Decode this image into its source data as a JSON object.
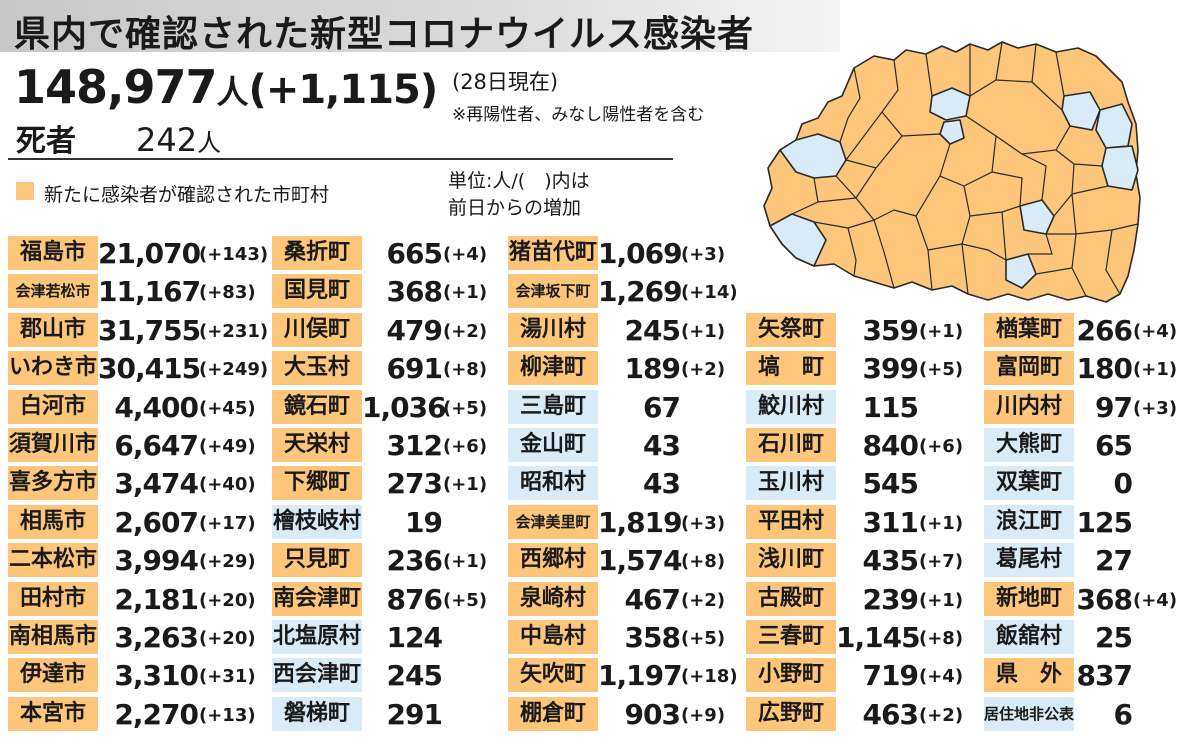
{
  "header": {
    "title": "県内で確認された新型コロナウイルス感染者",
    "total": "148,977",
    "total_unit": "人",
    "total_diff": "(+1,115)",
    "as_of": "(28日現在)",
    "note": "※再陽性者、みなし陽性者を含む",
    "deaths_label": "死者",
    "deaths_value": "242",
    "deaths_unit": "人"
  },
  "legend": {
    "label": "新たに感染者が確認された市町村",
    "color": "#fdc67a"
  },
  "unit_note": {
    "line1": "単位:人/(　)内は",
    "line2": "前日からの増加"
  },
  "colors": {
    "new_case": "#fdc67a",
    "no_new_case": "#d9ebf6"
  },
  "columns": [
    [
      {
        "name": "福島市",
        "value": "21,070",
        "diff": "(+143)",
        "new": true
      },
      {
        "name": "会津若松市",
        "value": "11,167",
        "diff": "(+83)",
        "new": true
      },
      {
        "name": "郡山市",
        "value": "31,755",
        "diff": "(+231)",
        "new": true
      },
      {
        "name": "いわき市",
        "value": "30,415",
        "diff": "(+249)",
        "new": true
      },
      {
        "name": "白河市",
        "value": "4,400",
        "diff": "(+45)",
        "new": true
      },
      {
        "name": "須賀川市",
        "value": "6,647",
        "diff": "(+49)",
        "new": true
      },
      {
        "name": "喜多方市",
        "value": "3,474",
        "diff": "(+40)",
        "new": true
      },
      {
        "name": "相馬市",
        "value": "2,607",
        "diff": "(+17)",
        "new": true
      },
      {
        "name": "二本松市",
        "value": "3,994",
        "diff": "(+29)",
        "new": true
      },
      {
        "name": "田村市",
        "value": "2,181",
        "diff": "(+20)",
        "new": true
      },
      {
        "name": "南相馬市",
        "value": "3,263",
        "diff": "(+20)",
        "new": true
      },
      {
        "name": "伊達市",
        "value": "3,310",
        "diff": "(+31)",
        "new": true
      },
      {
        "name": "本宮市",
        "value": "2,270",
        "diff": "(+13)",
        "new": true
      }
    ],
    [
      {
        "name": "桑折町",
        "value": "665",
        "diff": "(+4)",
        "new": true
      },
      {
        "name": "国見町",
        "value": "368",
        "diff": "(+1)",
        "new": true
      },
      {
        "name": "川俣町",
        "value": "479",
        "diff": "(+2)",
        "new": true
      },
      {
        "name": "大玉村",
        "value": "691",
        "diff": "(+8)",
        "new": true
      },
      {
        "name": "鏡石町",
        "value": "1,036",
        "diff": "(+5)",
        "new": true
      },
      {
        "name": "天栄村",
        "value": "312",
        "diff": "(+6)",
        "new": true
      },
      {
        "name": "下郷町",
        "value": "273",
        "diff": "(+1)",
        "new": true
      },
      {
        "name": "檜枝岐村",
        "value": "19",
        "diff": "",
        "new": false
      },
      {
        "name": "只見町",
        "value": "236",
        "diff": "(+1)",
        "new": true
      },
      {
        "name": "南会津町",
        "value": "876",
        "diff": "(+5)",
        "new": true
      },
      {
        "name": "北塩原村",
        "value": "124",
        "diff": "",
        "new": false
      },
      {
        "name": "西会津町",
        "value": "245",
        "diff": "",
        "new": false
      },
      {
        "name": "磐梯町",
        "value": "291",
        "diff": "",
        "new": false
      }
    ],
    [
      {
        "name": "猪苗代町",
        "value": "1,069",
        "diff": "(+3)",
        "new": true
      },
      {
        "name": "会津坂下町",
        "value": "1,269",
        "diff": "(+14)",
        "new": true
      },
      {
        "name": "湯川村",
        "value": "245",
        "diff": "(+1)",
        "new": true
      },
      {
        "name": "柳津町",
        "value": "189",
        "diff": "(+2)",
        "new": true
      },
      {
        "name": "三島町",
        "value": "67",
        "diff": "",
        "new": false
      },
      {
        "name": "金山町",
        "value": "43",
        "diff": "",
        "new": false
      },
      {
        "name": "昭和村",
        "value": "43",
        "diff": "",
        "new": false
      },
      {
        "name": "会津美里町",
        "value": "1,819",
        "diff": "(+3)",
        "new": true
      },
      {
        "name": "西郷村",
        "value": "1,574",
        "diff": "(+8)",
        "new": true
      },
      {
        "name": "泉崎村",
        "value": "467",
        "diff": "(+2)",
        "new": true
      },
      {
        "name": "中島村",
        "value": "358",
        "diff": "(+5)",
        "new": true
      },
      {
        "name": "矢吹町",
        "value": "1,197",
        "diff": "(+18)",
        "new": true
      },
      {
        "name": "棚倉町",
        "value": "903",
        "diff": "(+9)",
        "new": true
      }
    ],
    [
      {
        "name": "矢祭町",
        "value": "359",
        "diff": "(+1)",
        "new": true
      },
      {
        "name": "塙　町",
        "value": "399",
        "diff": "(+5)",
        "new": true
      },
      {
        "name": "鮫川村",
        "value": "115",
        "diff": "",
        "new": false
      },
      {
        "name": "石川町",
        "value": "840",
        "diff": "(+6)",
        "new": true
      },
      {
        "name": "玉川村",
        "value": "545",
        "diff": "",
        "new": false
      },
      {
        "name": "平田村",
        "value": "311",
        "diff": "(+1)",
        "new": true
      },
      {
        "name": "浅川町",
        "value": "435",
        "diff": "(+7)",
        "new": true
      },
      {
        "name": "古殿町",
        "value": "239",
        "diff": "(+1)",
        "new": true
      },
      {
        "name": "三春町",
        "value": "1,145",
        "diff": "(+8)",
        "new": true
      },
      {
        "name": "小野町",
        "value": "719",
        "diff": "(+4)",
        "new": true
      },
      {
        "name": "広野町",
        "value": "463",
        "diff": "(+2)",
        "new": true
      }
    ],
    [
      {
        "name": "楢葉町",
        "value": "266",
        "diff": "(+4)",
        "new": true
      },
      {
        "name": "富岡町",
        "value": "180",
        "diff": "(+1)",
        "new": true
      },
      {
        "name": "川内村",
        "value": "97",
        "diff": "(+3)",
        "new": true
      },
      {
        "name": "大熊町",
        "value": "65",
        "diff": "",
        "new": false
      },
      {
        "name": "双葉町",
        "value": "0",
        "diff": "",
        "new": false
      },
      {
        "name": "浪江町",
        "value": "125",
        "diff": "",
        "new": false
      },
      {
        "name": "葛尾村",
        "value": "27",
        "diff": "",
        "new": false
      },
      {
        "name": "新地町",
        "value": "368",
        "diff": "(+4)",
        "new": true
      },
      {
        "name": "飯舘村",
        "value": "25",
        "diff": "",
        "new": false
      },
      {
        "name": "県　外",
        "value": "837",
        "diff": "",
        "new": true
      },
      {
        "name": "居住地非公表",
        "value": "6",
        "diff": "",
        "new": false
      }
    ]
  ]
}
